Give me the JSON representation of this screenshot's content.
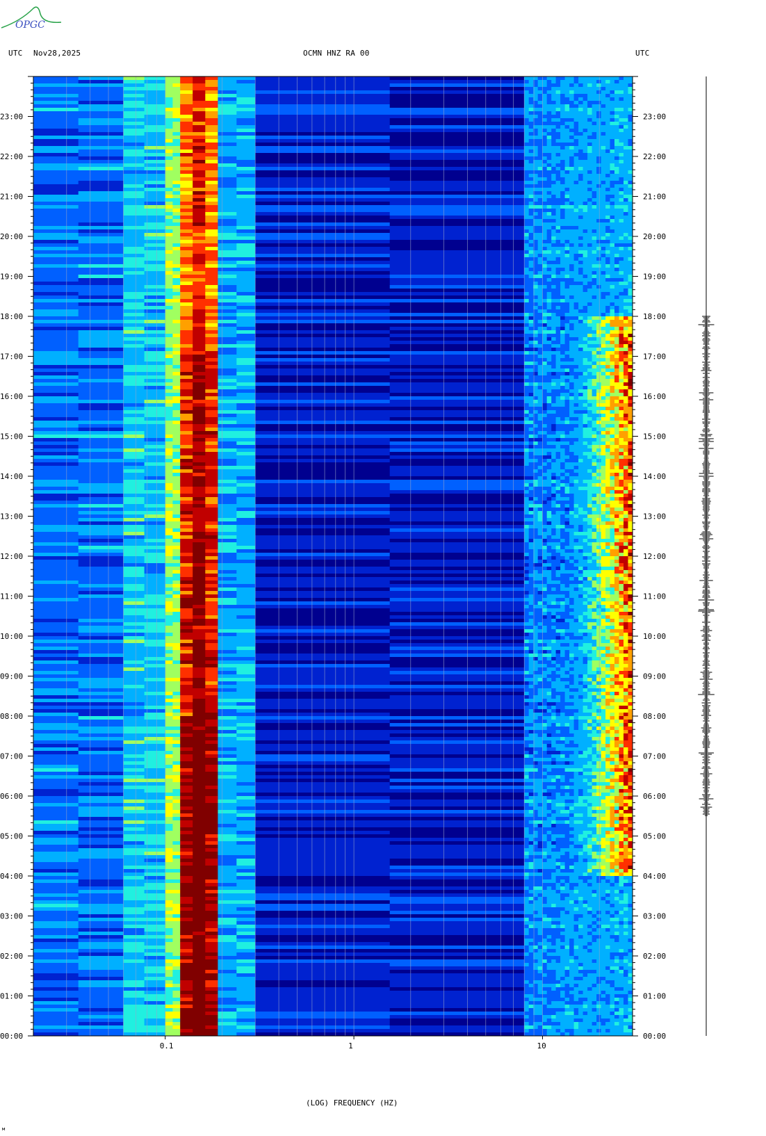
{
  "header": {
    "left_tz": "UTC",
    "date": "Nov28,2025",
    "station": "OCMN HNZ RA 00",
    "right_tz": "UTC"
  },
  "logo": {
    "text": "OPGC",
    "color_text": "#3a4fbf",
    "color_arc": "#2aa34a"
  },
  "footer_mark": "м",
  "chart_data": {
    "type": "heatmap",
    "title": "",
    "xlabel": "(LOG) FREQUENCY (HZ)",
    "x_scale": "log",
    "xlim": [
      0.02,
      30
    ],
    "x_ticks": [
      0.1,
      1,
      10
    ],
    "x_tick_labels": [
      "0.1",
      "1",
      "10"
    ],
    "ylim_hours": [
      0,
      24
    ],
    "y_ticks_hours": [
      0,
      1,
      2,
      3,
      4,
      5,
      6,
      7,
      8,
      9,
      10,
      11,
      12,
      13,
      14,
      15,
      16,
      17,
      18,
      19,
      20,
      21,
      22,
      23
    ],
    "y_tick_labels": [
      "00:00",
      "01:00",
      "02:00",
      "03:00",
      "04:00",
      "05:00",
      "06:00",
      "07:00",
      "08:00",
      "09:00",
      "10:00",
      "11:00",
      "12:00",
      "13:00",
      "14:00",
      "15:00",
      "16:00",
      "17:00",
      "18:00",
      "19:00",
      "20:00",
      "21:00",
      "22:00",
      "23:00"
    ],
    "colormap": [
      "#00008f",
      "#0022d0",
      "#0060ff",
      "#00b0ff",
      "#20f0e0",
      "#a0ff60",
      "#ffff00",
      "#ffa000",
      "#ff3000",
      "#c00000",
      "#800000"
    ],
    "bands": [
      {
        "f_low": 0.02,
        "f_high": 0.06,
        "level": 0.22
      },
      {
        "f_low": 0.06,
        "f_high": 0.1,
        "level": 0.35
      },
      {
        "f_low": 0.1,
        "f_high": 0.12,
        "level": 0.5
      },
      {
        "f_low": 0.12,
        "f_high": 0.19,
        "level": 0.85
      },
      {
        "f_low": 0.19,
        "f_high": 0.3,
        "level": 0.3
      },
      {
        "f_low": 0.3,
        "f_high": 8,
        "level": 0.08
      },
      {
        "f_low": 8,
        "f_high": 30,
        "level": 0.25
      }
    ],
    "high_freq_activity": {
      "f_low": 10,
      "f_high": 30,
      "start_hour": 4,
      "end_hour": 18,
      "peak_level": 0.95
    },
    "trace": {
      "active_start_hour": 5.5,
      "active_end_hour": 18
    }
  }
}
